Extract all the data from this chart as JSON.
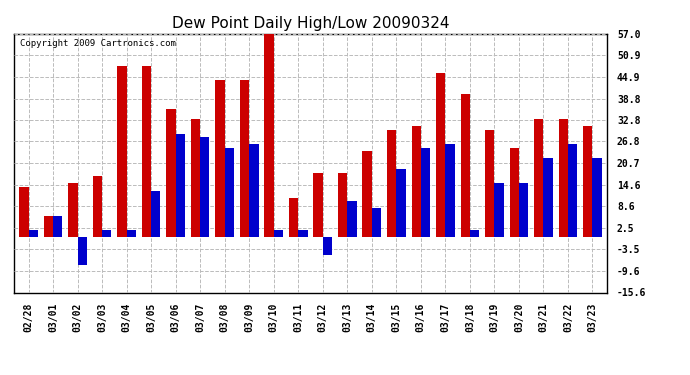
{
  "title": "Dew Point Daily High/Low 20090324",
  "copyright": "Copyright 2009 Cartronics.com",
  "dates": [
    "02/28",
    "03/01",
    "03/02",
    "03/03",
    "03/04",
    "03/05",
    "03/06",
    "03/07",
    "03/08",
    "03/09",
    "03/10",
    "03/11",
    "03/12",
    "03/13",
    "03/14",
    "03/15",
    "03/16",
    "03/17",
    "03/18",
    "03/19",
    "03/20",
    "03/21",
    "03/22",
    "03/23"
  ],
  "highs": [
    14.0,
    6.0,
    15.0,
    17.0,
    48.0,
    48.0,
    36.0,
    33.0,
    44.0,
    44.0,
    57.0,
    11.0,
    18.0,
    18.0,
    24.0,
    30.0,
    31.0,
    46.0,
    40.0,
    30.0,
    25.0,
    33.0,
    33.0,
    31.0
  ],
  "lows": [
    2.0,
    6.0,
    -8.0,
    2.0,
    2.0,
    13.0,
    29.0,
    28.0,
    25.0,
    26.0,
    2.0,
    2.0,
    -5.0,
    10.0,
    8.0,
    19.0,
    25.0,
    26.0,
    2.0,
    15.0,
    15.0,
    22.0,
    26.0,
    22.0
  ],
  "high_color": "#cc0000",
  "low_color": "#0000cc",
  "background_color": "#ffffff",
  "grid_color": "#bbbbbb",
  "yticks": [
    -15.6,
    -9.6,
    -3.5,
    2.5,
    8.6,
    14.6,
    20.7,
    26.8,
    32.8,
    38.8,
    44.9,
    50.9,
    57.0
  ],
  "ylim": [
    -15.6,
    57.0
  ],
  "bar_width": 0.38,
  "title_fontsize": 11,
  "tick_fontsize": 7,
  "copyright_fontsize": 6.5,
  "figsize": [
    6.9,
    3.75
  ],
  "dpi": 100
}
